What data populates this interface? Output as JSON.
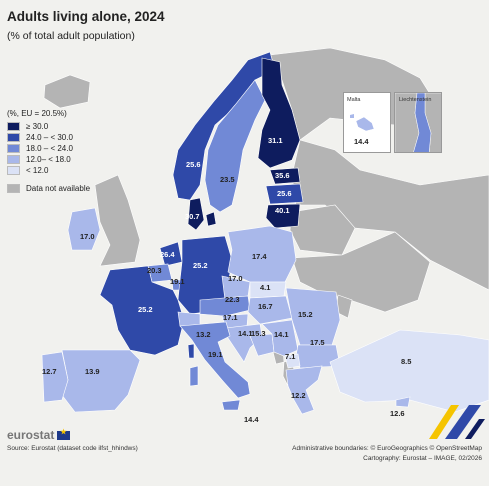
{
  "title": "Adults living alone, 2024",
  "subtitle": "(% of total adult population)",
  "legend": {
    "title": "(%, EU = 20.5%)",
    "classes": [
      {
        "label": "≥ 30.0",
        "color": "#0e1c5e"
      },
      {
        "label": "24.0 – < 30.0",
        "color": "#2f49a8"
      },
      {
        "label": "18.0 – < 24.0",
        "color": "#7189d6"
      },
      {
        "label": "12.0– < 18.0",
        "color": "#a9b8ea"
      },
      {
        "label": "< 12.0",
        "color": "#dbe2f6"
      }
    ],
    "not_available": {
      "label": "Data not available",
      "color": "#b4b4b4"
    }
  },
  "countries": [
    {
      "name": "Finland",
      "value": "31.1",
      "color": "#0e1c5e",
      "label_color": "#ffffff"
    },
    {
      "name": "Sweden",
      "value": "23.5",
      "color": "#7189d6",
      "label_color": "#222222"
    },
    {
      "name": "Norway",
      "value": "25.6",
      "color": "#2f49a8",
      "label_color": "#ffffff"
    },
    {
      "name": "Estonia",
      "value": "35.6",
      "color": "#0e1c5e",
      "label_color": "#ffffff"
    },
    {
      "name": "Latvia",
      "value": "25.6",
      "color": "#2f49a8",
      "label_color": "#ffffff"
    },
    {
      "name": "Lithuania",
      "value": "40.1",
      "color": "#0e1c5e",
      "label_color": "#ffffff"
    },
    {
      "name": "Denmark",
      "value": "30.7",
      "color": "#0e1c5e",
      "label_color": "#ffffff"
    },
    {
      "name": "Ireland",
      "value": "17.0",
      "color": "#a9b8ea",
      "label_color": "#222222"
    },
    {
      "name": "Netherlands",
      "value": "26.4",
      "color": "#2f49a8",
      "label_color": "#ffffff"
    },
    {
      "name": "Belgium",
      "value": "20.3",
      "color": "#7189d6",
      "label_color": "#222222"
    },
    {
      "name": "Luxembourg",
      "value": "19.1",
      "color": "#7189d6",
      "label_color": "#222222"
    },
    {
      "name": "Germany",
      "value": "25.2",
      "color": "#2f49a8",
      "label_color": "#ffffff"
    },
    {
      "name": "Poland",
      "value": "17.4",
      "color": "#a9b8ea",
      "label_color": "#222222"
    },
    {
      "name": "Czechia",
      "value": "17.0",
      "color": "#a9b8ea",
      "label_color": "#222222"
    },
    {
      "name": "Slovakia",
      "value": "4.1",
      "color": "#dbe2f6",
      "label_color": "#222222"
    },
    {
      "name": "Austria",
      "value": "22.3",
      "color": "#7189d6",
      "label_color": "#222222"
    },
    {
      "name": "Hungary",
      "value": "16.7",
      "color": "#a9b8ea",
      "label_color": "#222222"
    },
    {
      "name": "Romania",
      "value": "15.2",
      "color": "#a9b8ea",
      "label_color": "#222222"
    },
    {
      "name": "Slovenia",
      "value": "17.1",
      "color": "#a9b8ea",
      "label_color": "#222222"
    },
    {
      "name": "Croatia",
      "value": "14.1",
      "color": "#a9b8ea",
      "label_color": "#222222"
    },
    {
      "name": "Bosnia and Herzegovina",
      "value": "15.3",
      "color": "#a9b8ea",
      "label_color": "#222222"
    },
    {
      "name": "Serbia",
      "value": "14.1",
      "color": "#a9b8ea",
      "label_color": "#222222"
    },
    {
      "name": "Bulgaria",
      "value": "17.5",
      "color": "#a9b8ea",
      "label_color": "#222222"
    },
    {
      "name": "North Macedonia",
      "value": "7.1",
      "color": "#dbe2f6",
      "label_color": "#222222"
    },
    {
      "name": "France",
      "value": "25.2",
      "color": "#2f49a8",
      "label_color": "#ffffff"
    },
    {
      "name": "Switzerland",
      "value": "13.2",
      "color": "#a9b8ea",
      "label_color": "#222222"
    },
    {
      "name": "Italy",
      "value": "19.1",
      "color": "#7189d6",
      "label_color": "#222222"
    },
    {
      "name": "Spain",
      "value": "13.9",
      "color": "#a9b8ea",
      "label_color": "#222222"
    },
    {
      "name": "Portugal",
      "value": "12.7",
      "color": "#a9b8ea",
      "label_color": "#222222"
    },
    {
      "name": "Greece",
      "value": "12.2",
      "color": "#a9b8ea",
      "label_color": "#222222"
    },
    {
      "name": "Türkiye",
      "value": "8.5",
      "color": "#dbe2f6",
      "label_color": "#222222"
    },
    {
      "name": "Cyprus",
      "value": "12.6",
      "color": "#a9b8ea",
      "label_color": "#222222"
    },
    {
      "name": "Malta (Sicily label)",
      "value": "14.4",
      "color": "#a9b8ea",
      "label_color": "#222222"
    }
  ],
  "insets": {
    "malta": {
      "name": "Malta",
      "value": "14.4",
      "color": "#a9b8ea"
    },
    "liechtenstein": {
      "name": "Liechtenstein",
      "color": "#7189d6"
    }
  },
  "branding": {
    "logo_text": "eurostat"
  },
  "source": "Source: Eurostat (dataset code ilfst_hhindws)",
  "credits": {
    "line1": "Administrative boundaries: © EuroGeographics © OpenStreetMap",
    "line2": "Cartography: Eurostat – IMAGE, 02/2026"
  },
  "colors": {
    "sea": "#f1f1ee",
    "no_data": "#b4b4b4",
    "outline": "#ffffff"
  }
}
